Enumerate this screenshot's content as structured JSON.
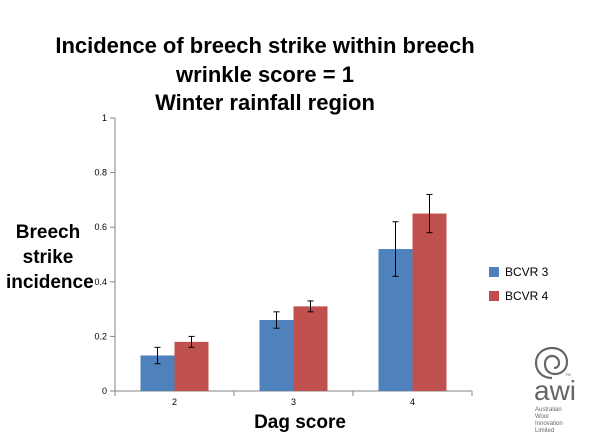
{
  "chart_data": {
    "type": "bar",
    "title_lines": [
      "Incidence of breech strike within breech",
      "wrinkle score = 1",
      "Winter rainfall region"
    ],
    "ylabel_lines": [
      "Breech",
      "strike",
      "incidence"
    ],
    "xlabel": "Dag score",
    "categories": [
      "2",
      "3",
      "4"
    ],
    "series": [
      {
        "name": "BCVR 3",
        "color": "#4F81BD",
        "values": [
          0.13,
          0.26,
          0.52
        ],
        "err": [
          0.03,
          0.03,
          0.1
        ]
      },
      {
        "name": "BCVR 4",
        "color": "#C0504D",
        "values": [
          0.18,
          0.31,
          0.65
        ],
        "err": [
          0.02,
          0.02,
          0.07
        ]
      }
    ],
    "ylim": [
      0,
      1
    ],
    "yticks": [
      "0",
      "0.2",
      "0.4",
      "0.6",
      "0.8",
      "1"
    ],
    "grid": false,
    "legend_position": "right"
  },
  "logo": {
    "name": "awi-logo-icon",
    "word": "awi",
    "sub_lines": [
      "Australian",
      "Wool Innovation",
      "Limited"
    ],
    "tm": "TM",
    "color": "#666666"
  }
}
